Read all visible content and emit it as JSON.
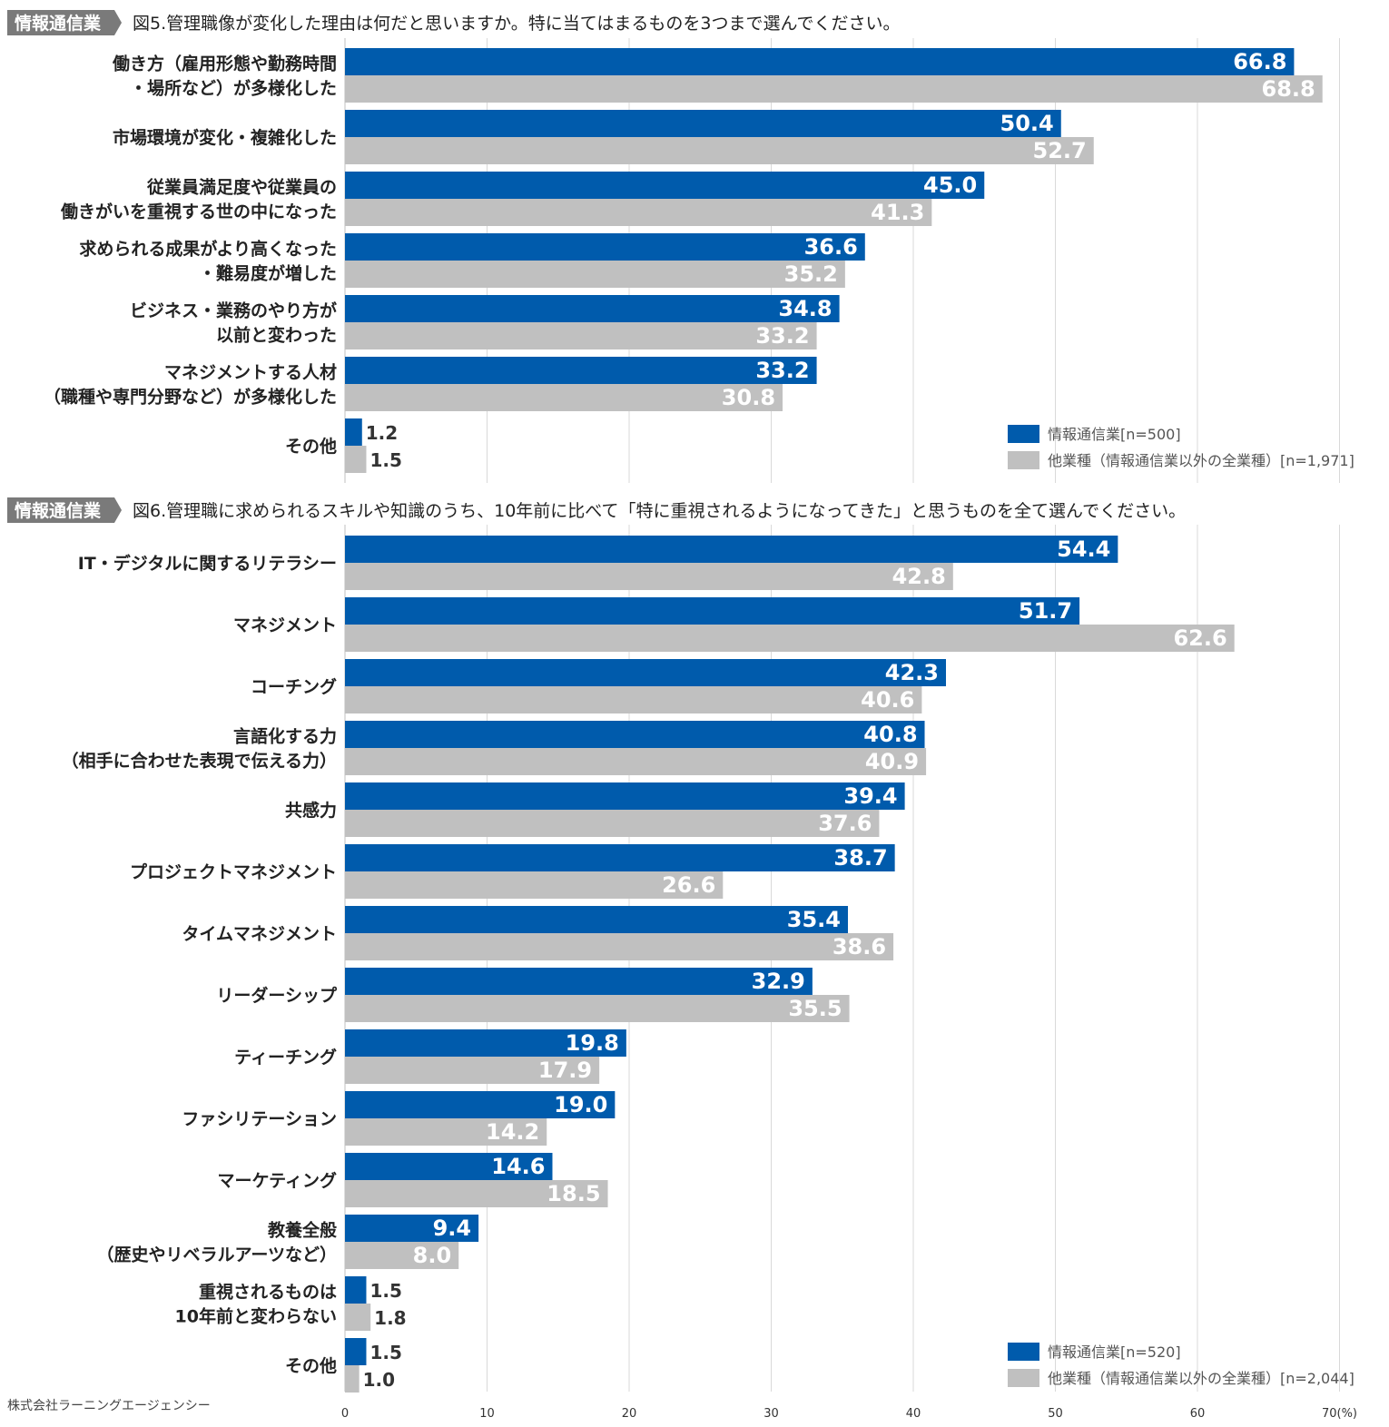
{
  "company": "株式会社ラーニングエージェンシー",
  "colors": {
    "primary": "#005bac",
    "secondary": "#c0c0c0",
    "tag_bg": "#7a7a7a",
    "grid": "#d9d9d9"
  },
  "chart_data": [
    {
      "type": "bar",
      "orientation": "horizontal",
      "tag": "情報通信業",
      "title": "図5.管理職像が変化した理由は何だと思いますか。特に当てはまるものを3つまで選んでください。",
      "categories": [
        [
          "働き方（雇用形態や勤務時間",
          "・場所など）が多様化した"
        ],
        [
          "市場環境が変化・複雑化した"
        ],
        [
          "従業員満足度や従業員の",
          "働きがいを重視する世の中になった"
        ],
        [
          "求められる成果がより高くなった",
          "・難易度が増した"
        ],
        [
          "ビジネス・業務のやり方が",
          "以前と変わった"
        ],
        [
          "マネジメントする人材",
          "（職種や専門分野など）が多様化した"
        ],
        [
          "その他"
        ]
      ],
      "series": [
        {
          "name": "情報通信業[n=500]",
          "values": [
            66.8,
            50.4,
            45.0,
            36.6,
            34.8,
            33.2,
            1.2
          ]
        },
        {
          "name": "他業種（情報通信業以外の全業種）[n=1,971]",
          "values": [
            68.8,
            52.7,
            41.3,
            35.2,
            33.2,
            30.8,
            1.5
          ]
        }
      ],
      "xlim": [
        0,
        70
      ]
    },
    {
      "type": "bar",
      "orientation": "horizontal",
      "tag": "情報通信業",
      "title": "図6.管理職に求められるスキルや知識のうち、10年前に比べて「特に重視されるようになってきた」と思うものを全て選んでください。",
      "categories": [
        [
          "IT・デジタルに関するリテラシー"
        ],
        [
          "マネジメント"
        ],
        [
          "コーチング"
        ],
        [
          "言語化する力",
          "（相手に合わせた表現で伝える力）"
        ],
        [
          "共感力"
        ],
        [
          "プロジェクトマネジメント"
        ],
        [
          "タイムマネジメント"
        ],
        [
          "リーダーシップ"
        ],
        [
          "ティーチング"
        ],
        [
          "ファシリテーション"
        ],
        [
          "マーケティング"
        ],
        [
          "教養全般",
          "（歴史やリベラルアーツなど）"
        ],
        [
          "重視されるものは",
          "10年前と変わらない"
        ],
        [
          "その他"
        ]
      ],
      "series": [
        {
          "name": "情報通信業[n=520]",
          "values": [
            54.4,
            51.7,
            42.3,
            40.8,
            39.4,
            38.7,
            35.4,
            32.9,
            19.8,
            19.0,
            14.6,
            9.4,
            1.5,
            1.5
          ]
        },
        {
          "name": "他業種（情報通信業以外の全業種）[n=2,044]",
          "values": [
            42.8,
            62.6,
            40.6,
            40.9,
            37.6,
            26.6,
            38.6,
            35.5,
            17.9,
            14.2,
            18.5,
            8.0,
            1.8,
            1.0
          ]
        }
      ],
      "xlim": [
        0,
        70
      ],
      "xticks": [
        "0",
        "10",
        "20",
        "30",
        "40",
        "50",
        "60",
        "70(%)"
      ]
    }
  ]
}
